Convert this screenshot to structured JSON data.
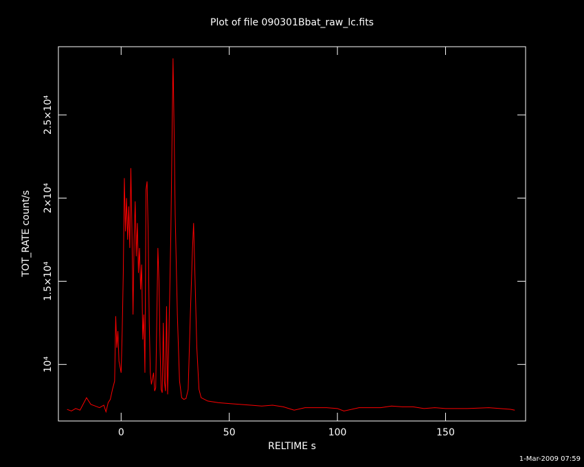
{
  "chart_data": {
    "type": "line",
    "title": "Plot of file 090301Bbat_raw_lc.fits",
    "x_label": "RELTIME  s",
    "y_label": "TOT_RATE  count/s",
    "footnote": "1-Mar-2009 07:59",
    "xlim": [
      -29,
      187
    ],
    "ylim": [
      6600,
      29100
    ],
    "xticks": [
      0,
      50,
      100,
      150
    ],
    "yticks": [
      {
        "value": 10000,
        "label": "10⁴"
      },
      {
        "value": 15000,
        "label": "1.5×10⁴"
      },
      {
        "value": 20000,
        "label": "2×10⁴"
      },
      {
        "value": 25000,
        "label": "2.5×10⁴"
      }
    ],
    "series": [
      {
        "color": "#ff0000",
        "x": [
          -25,
          -23,
          -21,
          -19,
          -16,
          -14,
          -12,
          -10,
          -8,
          -7,
          -6,
          -5,
          -4,
          -3,
          -2.5,
          -2,
          -1.5,
          -1,
          0,
          0.5,
          1,
          1.5,
          2,
          2.5,
          3,
          3.5,
          4,
          4.5,
          5,
          5.5,
          6,
          6.5,
          7,
          7.5,
          8,
          8.5,
          9,
          9.5,
          10,
          10.5,
          11,
          11.5,
          12,
          12.5,
          13,
          13.5,
          14,
          15,
          15.5,
          16,
          17,
          17.5,
          18,
          18.5,
          19,
          19.5,
          20,
          20.5,
          21,
          21.5,
          22,
          23,
          24,
          24.5,
          25,
          26,
          27,
          28,
          29,
          30,
          31,
          32,
          33,
          33.5,
          34,
          35,
          36,
          37,
          40,
          45,
          50,
          60,
          65,
          70,
          75,
          80,
          85,
          95,
          100,
          103,
          110,
          120,
          125,
          130,
          135,
          140,
          145,
          150,
          160,
          170,
          180,
          182
        ],
        "values": [
          7300,
          7200,
          7350,
          7250,
          8000,
          7600,
          7500,
          7400,
          7550,
          7150,
          7700,
          7900,
          8500,
          9000,
          12900,
          11000,
          12000,
          10200,
          9500,
          12000,
          15500,
          21200,
          18000,
          20000,
          17500,
          19500,
          17000,
          21800,
          18000,
          13000,
          17500,
          19800,
          16500,
          18500,
          15500,
          17000,
          14500,
          16000,
          11500,
          13000,
          9500,
          20500,
          21000,
          18000,
          12500,
          9500,
          8800,
          9500,
          8400,
          8600,
          17000,
          15000,
          11000,
          8500,
          8300,
          12500,
          9000,
          8400,
          13500,
          8200,
          11000,
          18000,
          28400,
          24000,
          19000,
          13000,
          9000,
          8000,
          7900,
          7950,
          8500,
          13000,
          17000,
          18500,
          16000,
          11000,
          8500,
          8000,
          7800,
          7700,
          7650,
          7550,
          7500,
          7550,
          7450,
          7250,
          7400,
          7400,
          7350,
          7200,
          7400,
          7400,
          7500,
          7450,
          7450,
          7350,
          7400,
          7350,
          7350,
          7400,
          7300,
          7250
        ]
      }
    ]
  }
}
